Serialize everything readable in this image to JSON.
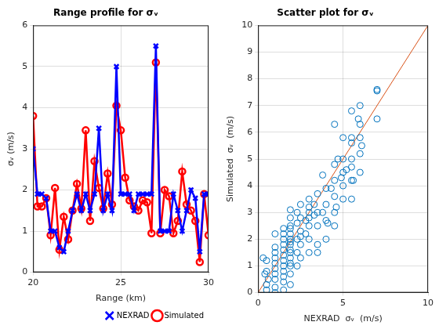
{
  "chart_data": [
    {
      "type": "line",
      "title": "Range profile for σᵥ",
      "x_label": "Range (km)",
      "y_label": "σᵥ (m/s)",
      "x": [
        20,
        20.25,
        20.5,
        20.75,
        21,
        21.25,
        21.5,
        21.75,
        22,
        22.25,
        22.5,
        22.75,
        23,
        23.25,
        23.5,
        23.75,
        24,
        24.25,
        24.5,
        24.75,
        25,
        25.25,
        25.5,
        25.75,
        26,
        26.25,
        26.5,
        26.75,
        27,
        27.25,
        27.5,
        27.75,
        28,
        28.25,
        28.5,
        28.75,
        29,
        29.25,
        29.5,
        29.75,
        30
      ],
      "series": [
        {
          "name": "NEXRAD",
          "color": "#0000ff",
          "marker": "x",
          "line_style": "solid",
          "values": [
            3.0,
            1.9,
            1.9,
            1.8,
            1.0,
            1.0,
            0.6,
            0.5,
            1.0,
            1.5,
            1.9,
            1.5,
            1.9,
            1.5,
            1.9,
            3.5,
            1.5,
            1.9,
            1.5,
            5.0,
            1.9,
            1.9,
            1.9,
            1.5,
            1.9,
            1.9,
            1.9,
            1.9,
            5.5,
            1.0,
            1.0,
            1.0,
            1.9,
            1.5,
            1.0,
            1.5,
            2.0,
            1.8,
            0.5,
            1.9,
            1.9
          ]
        },
        {
          "name": "Simulated",
          "color": "#ff0000",
          "marker": "o",
          "line_style": "solid",
          "values": [
            3.8,
            1.6,
            1.6,
            1.8,
            0.9,
            2.05,
            0.55,
            1.35,
            0.8,
            1.5,
            2.15,
            1.55,
            3.45,
            1.25,
            2.7,
            2.05,
            1.55,
            2.4,
            1.65,
            4.05,
            3.45,
            2.3,
            1.75,
            1.6,
            1.5,
            1.75,
            1.7,
            0.95,
            5.1,
            0.95,
            2.0,
            1.85,
            0.95,
            1.25,
            2.45,
            1.65,
            1.5,
            1.25,
            0.25,
            1.9,
            0.9
          ]
        }
      ],
      "xlim": [
        20,
        30
      ],
      "xticks": [
        20,
        25,
        30
      ],
      "ylim": [
        0,
        6
      ],
      "yticks": [
        0,
        1,
        2,
        3,
        4,
        5,
        6
      ],
      "grid": true,
      "legend": "lower right"
    },
    {
      "type": "scatter",
      "title": "Scatter plot for σᵥ",
      "x_label": "NEXRAD  σᵥ  (m/s)",
      "y_label": "Simulated  σᵥ  (m/s)",
      "series": [
        {
          "type": "scatter",
          "color": "#0072bd",
          "marker": "o",
          "x": [
            0.5,
            0.5,
            0.5,
            0.5,
            0.3,
            0.4,
            0.6,
            1.0,
            1.0,
            1.0,
            1.0,
            1.0,
            1.0,
            1.0,
            1.0,
            1.0,
            1.0,
            1.5,
            1.5,
            1.5,
            1.5,
            1.5,
            1.5,
            1.5,
            1.5,
            1.5,
            1.5,
            1.5,
            1.5,
            1.9,
            1.9,
            1.9,
            1.9,
            1.9,
            1.9,
            1.9,
            1.9,
            1.9,
            1.9,
            1.9,
            1.9,
            1.9,
            1.9,
            1.9,
            2.3,
            2.3,
            2.3,
            2.3,
            2.3,
            2.5,
            2.5,
            2.5,
            2.5,
            2.5,
            2.5,
            3.0,
            3.0,
            3.0,
            3.0,
            3.0,
            3.0,
            3.0,
            2.8,
            2.8,
            3.5,
            3.5,
            3.5,
            3.5,
            3.3,
            3.3,
            3.5,
            4.0,
            4.0,
            4.0,
            4.0,
            3.8,
            3.8,
            4.1,
            4.5,
            4.5,
            4.5,
            4.5,
            4.5,
            4.3,
            4.7,
            4.6,
            4.5,
            5.0,
            5.0,
            5.0,
            5.0,
            5.0,
            4.9,
            5.2,
            5.5,
            5.5,
            5.5,
            5.5,
            5.5,
            5.5,
            5.5,
            5.6,
            6.0,
            6.0,
            6.0,
            6.0,
            6.0,
            5.9,
            6.1,
            7.0,
            7.0,
            7.0
          ],
          "values": [
            0.8,
            0.3,
            1.2,
            0.1,
            1.3,
            0.7,
            0.5,
            0.2,
            0.5,
            0.9,
            1.3,
            1.7,
            2.2,
            0.7,
            1.1,
            1.5,
            0.0,
            0.1,
            0.4,
            0.8,
            1.2,
            1.6,
            2.0,
            2.4,
            1.0,
            1.4,
            1.8,
            2.2,
            0.6,
            0.3,
            0.7,
            1.0,
            1.3,
            1.6,
            1.9,
            2.2,
            2.5,
            2.8,
            3.1,
            1.1,
            1.5,
            1.8,
            2.0,
            2.4,
            1.0,
            1.5,
            2.0,
            2.6,
            3.0,
            1.3,
            1.8,
            2.3,
            2.8,
            3.3,
            2.1,
            1.5,
            2.0,
            2.5,
            3.0,
            3.5,
            2.8,
            3.2,
            2.2,
            2.7,
            1.8,
            2.5,
            3.0,
            3.7,
            3.3,
            2.9,
            1.5,
            2.0,
            2.7,
            3.3,
            3.9,
            3.0,
            4.4,
            2.6,
            2.5,
            3.0,
            3.6,
            4.2,
            4.8,
            3.9,
            5.0,
            3.2,
            6.3,
            3.5,
            4.0,
            4.5,
            5.0,
            5.8,
            4.3,
            4.6,
            3.5,
            4.2,
            5.0,
            5.6,
            5.8,
            6.8,
            4.7,
            4.2,
            4.5,
            5.2,
            5.8,
            6.3,
            7.0,
            6.5,
            5.5,
            7.6,
            6.5,
            7.55
          ]
        },
        {
          "type": "line",
          "color": "#d95319",
          "line_style": "solid",
          "x": [
            0,
            10
          ],
          "values": [
            0,
            10
          ]
        }
      ],
      "xlim": [
        0,
        10
      ],
      "xticks": [
        0,
        5,
        10
      ],
      "ylim": [
        0,
        10
      ],
      "yticks": [
        0,
        1,
        2,
        3,
        4,
        5,
        6,
        7,
        8,
        9,
        10
      ],
      "grid": true
    }
  ]
}
